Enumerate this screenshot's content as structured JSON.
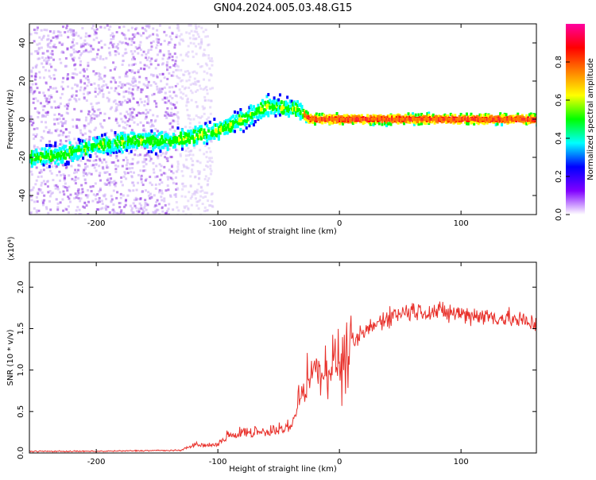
{
  "chart_data": [
    {
      "type": "heatmap",
      "title": "GN04.2024.005.03.48.G15",
      "xlabel": "Height of straight line (km)",
      "ylabel": "Frequency (Hz)",
      "xlim": [
        -255,
        162
      ],
      "ylim": [
        -50,
        50
      ],
      "xticks": [
        -200,
        -100,
        0,
        100
      ],
      "yticks": [
        -40,
        -20,
        0,
        20,
        40
      ],
      "colorbar": {
        "label": "Normalized spectral amplitude",
        "ticks": [
          "0.0",
          "0.2",
          "0.4",
          "0.6",
          "0.8"
        ],
        "colors": [
          "#ffffff",
          "#8000ff",
          "#0000ff",
          "#00ffff",
          "#00ff00",
          "#ffff00",
          "#ff8000",
          "#ff0000",
          "#ff00a0"
        ]
      },
      "ridge": {
        "x": [
          -250,
          -230,
          -200,
          -170,
          -140,
          -120,
          -100,
          -80,
          -60,
          -45,
          -35,
          -25,
          0,
          50,
          100,
          160
        ],
        "y": [
          -20,
          -19,
          -14,
          -11,
          -12,
          -9,
          -6,
          0,
          7,
          6,
          5,
          0,
          0,
          0,
          0,
          0
        ]
      }
    },
    {
      "type": "line",
      "xlabel": "Height of straight line (km)",
      "ylabel": "SNR (10 * v/v)",
      "multiplier": "(x10⁴)",
      "xlim": [
        -255,
        162
      ],
      "ylim": [
        0,
        2.3
      ],
      "xticks": [
        -200,
        -100,
        0,
        100
      ],
      "yticks": [
        "0.0",
        "0.5",
        "1.0",
        "1.5",
        "2.0"
      ],
      "color": "#e8302a",
      "envelope": {
        "x": [
          -255,
          -200,
          -150,
          -130,
          -120,
          -100,
          -90,
          -60,
          -40,
          -35,
          -25,
          -10,
          0,
          10,
          20,
          30,
          40,
          60,
          100,
          140,
          162
        ],
        "y": [
          0.02,
          0.02,
          0.03,
          0.03,
          0.07,
          0.08,
          0.18,
          0.2,
          0.25,
          0.45,
          0.95,
          1.0,
          1.15,
          1.3,
          1.45,
          1.55,
          1.65,
          1.72,
          1.68,
          1.62,
          1.55
        ]
      }
    }
  ]
}
